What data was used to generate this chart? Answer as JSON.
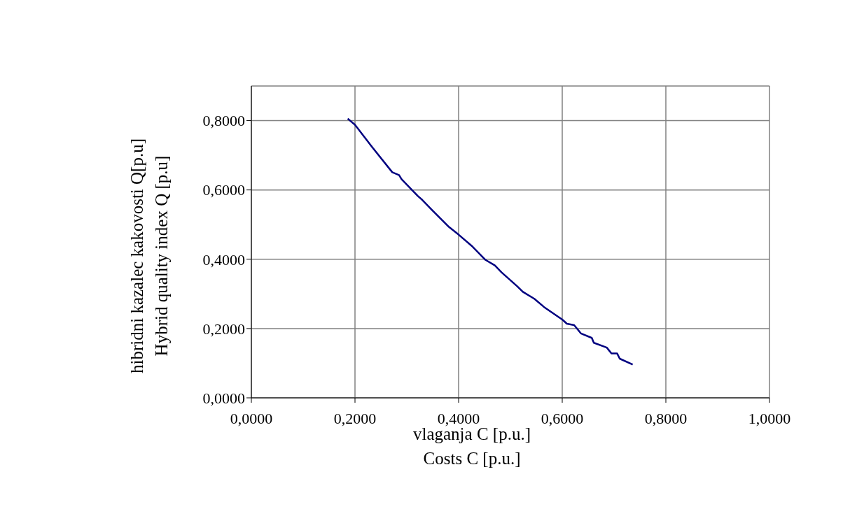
{
  "chart_data": {
    "type": "line",
    "xlabel": "vlaganja C [p.u.]\nCosts C [p.u.]",
    "ylabel": "hibridni kazalec kakovosti Q[p.u]\nHybrid quality index Q [p.u]",
    "xlim": [
      0,
      1
    ],
    "xticks": [
      {
        "value": 0,
        "label": "0,0000"
      },
      {
        "value": 0.2,
        "label": "0,2000"
      },
      {
        "value": 0.4,
        "label": "0,4000"
      },
      {
        "value": 0.6,
        "label": "0,6000"
      },
      {
        "value": 0.8,
        "label": "0,8000"
      },
      {
        "value": 1,
        "label": "1,0000"
      }
    ],
    "ylim": [
      0,
      0.9
    ],
    "yticks": [
      {
        "value": 0,
        "label": "0,0000"
      },
      {
        "value": 0.2,
        "label": "0,2000"
      },
      {
        "value": 0.4,
        "label": "0,4000"
      },
      {
        "value": 0.6,
        "label": "0,6000"
      },
      {
        "value": 0.8,
        "label": "0,8000"
      }
    ],
    "grid": true,
    "marker": "none",
    "line_style": "solid",
    "series": [
      {
        "color": "#000080",
        "x": [
          0.186,
          0.2,
          0.233,
          0.272,
          0.285,
          0.29,
          0.321,
          0.33,
          0.348,
          0.38,
          0.4,
          0.425,
          0.452,
          0.47,
          0.483,
          0.513,
          0.524,
          0.546,
          0.565,
          0.6,
          0.609,
          0.623,
          0.636,
          0.657,
          0.661,
          0.686,
          0.695,
          0.706,
          0.711,
          0.736
        ],
        "values": [
          0.806,
          0.788,
          0.724,
          0.651,
          0.643,
          0.631,
          0.583,
          0.571,
          0.543,
          0.495,
          0.471,
          0.439,
          0.398,
          0.382,
          0.362,
          0.322,
          0.306,
          0.286,
          0.262,
          0.226,
          0.214,
          0.21,
          0.186,
          0.173,
          0.159,
          0.145,
          0.128,
          0.128,
          0.113,
          0.096
        ]
      }
    ]
  }
}
